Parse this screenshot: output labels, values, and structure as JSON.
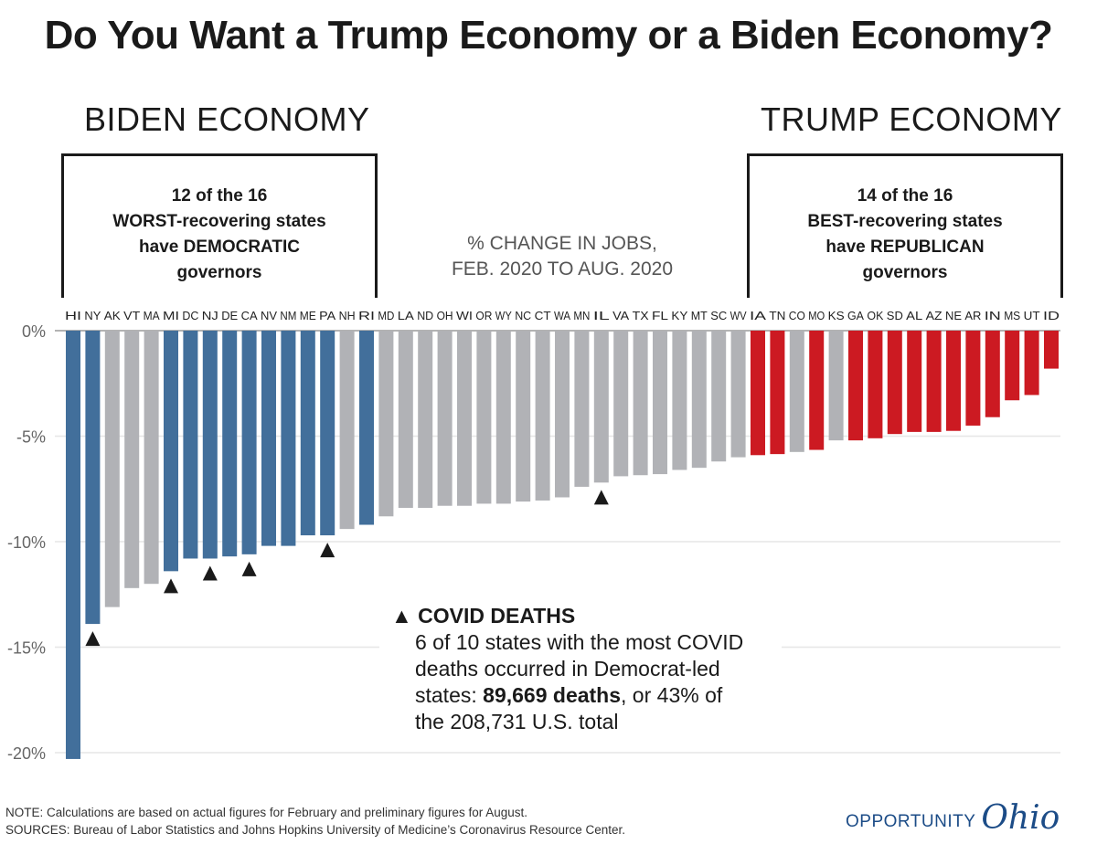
{
  "title": "Do You Want a Trump Economy or a Biden Economy?",
  "biden": {
    "heading": "BIDEN ECONOMY",
    "box_lines": [
      "12 of the 16",
      "WORST-recovering states",
      "have DEMOCRATIC",
      "governors"
    ]
  },
  "trump": {
    "heading": "TRUMP ECONOMY",
    "box_lines": [
      "14 of the 16",
      "BEST-recovering states",
      "have REPUBLICAN",
      "governors"
    ]
  },
  "covid_note": {
    "heading": "COVID DEATHS",
    "line1": "6 of 10 states with the most COVID",
    "line2": "deaths occurred in Democrat-led",
    "line3_pre": "states: ",
    "line3_bold": "89,669 deaths",
    "line3_post": ", or 43% of",
    "line4": "the 208,731 U.S. total"
  },
  "footer": {
    "note": "NOTE: Calculations are based on actual figures for February and preliminary figures for August.",
    "sources": "SOURCES: Bureau of Labor Statistics and Johns Hopkins University of Medicine’s Coronavirus Resource Center.",
    "logo_text": "OPPORTUNITY",
    "logo_script": "Ohio"
  },
  "colors": {
    "democratic": "#426f9b",
    "republican": "#cc1a22",
    "other": "#b1b2b6",
    "marker": "#1a1a1a"
  },
  "chart_data": {
    "type": "bar",
    "title": "% CHANGE IN JOBS,\nFEB. 2020 TO AUG. 2020",
    "subtitle_lines": [
      "% CHANGE IN JOBS,",
      "FEB. 2020 TO AUG. 2020"
    ],
    "ylim": [
      -20,
      0
    ],
    "yticks": [
      0,
      -5,
      -10,
      -15,
      -20
    ],
    "ytick_labels": [
      "0%",
      "-5%",
      "-10%",
      "-15%",
      "-20%"
    ],
    "grid": true,
    "categories": [
      "HI",
      "NY",
      "AK",
      "VT",
      "MA",
      "MI",
      "DC",
      "NJ",
      "DE",
      "CA",
      "NV",
      "NM",
      "ME",
      "PA",
      "NH",
      "RI",
      "MD",
      "LA",
      "ND",
      "OH",
      "WI",
      "OR",
      "WY",
      "NC",
      "CT",
      "WA",
      "MN",
      "IL",
      "VA",
      "TX",
      "FL",
      "KY",
      "MT",
      "SC",
      "WV",
      "IA",
      "TN",
      "CO",
      "MO",
      "KS",
      "GA",
      "OK",
      "SD",
      "AL",
      "AZ",
      "NE",
      "AR",
      "IN",
      "MS",
      "UT",
      "ID"
    ],
    "values": [
      -20.3,
      -13.9,
      -13.1,
      -12.2,
      -12.0,
      -11.4,
      -10.8,
      -10.8,
      -10.7,
      -10.6,
      -10.2,
      -10.2,
      -9.7,
      -9.7,
      -9.4,
      -9.2,
      -8.8,
      -8.4,
      -8.4,
      -8.3,
      -8.3,
      -8.2,
      -8.2,
      -8.1,
      -8.05,
      -7.9,
      -7.4,
      -7.2,
      -6.9,
      -6.85,
      -6.8,
      -6.6,
      -6.5,
      -6.2,
      -6.0,
      -5.9,
      -5.85,
      -5.75,
      -5.65,
      -5.2,
      -5.2,
      -5.1,
      -4.9,
      -4.8,
      -4.8,
      -4.75,
      -4.5,
      -4.1,
      -3.3,
      -3.05,
      -1.8
    ],
    "groups": [
      "democratic",
      "democratic",
      "other",
      "other",
      "other",
      "democratic",
      "democratic",
      "democratic",
      "democratic",
      "democratic",
      "democratic",
      "democratic",
      "democratic",
      "democratic",
      "other",
      "democratic",
      "other",
      "other",
      "other",
      "other",
      "other",
      "other",
      "other",
      "other",
      "other",
      "other",
      "other",
      "other",
      "other",
      "other",
      "other",
      "other",
      "other",
      "other",
      "other",
      "republican",
      "republican",
      "other",
      "republican",
      "other",
      "republican",
      "republican",
      "republican",
      "republican",
      "republican",
      "republican",
      "republican",
      "republican",
      "republican",
      "republican",
      "republican"
    ],
    "covid_death_markers": [
      "NY",
      "MI",
      "NJ",
      "CA",
      "PA",
      "IL"
    ]
  }
}
